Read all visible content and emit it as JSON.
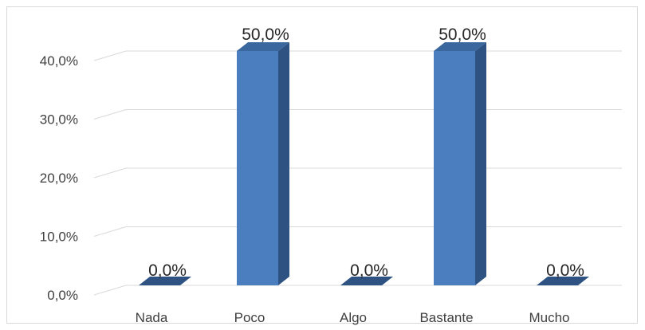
{
  "chart_data": {
    "type": "bar",
    "style": "3d-column",
    "categories": [
      "Nada",
      "Poco",
      "Algo",
      "Bastante",
      "Mucho"
    ],
    "values": [
      0,
      50,
      0,
      50,
      0
    ],
    "data_labels": [
      "0,0%",
      "50,0%",
      "0,0%",
      "50,0%",
      "0,0%"
    ],
    "y_ticks": [
      "0,0%",
      "10,0%",
      "20,0%",
      "30,0%",
      "40,0%"
    ],
    "ylim": [
      0,
      40
    ],
    "title": "",
    "xlabel": "",
    "ylabel": "",
    "grid": true,
    "legend": "none",
    "colors": {
      "bar_front": "#4a7ebf",
      "bar_side": "#2e5282",
      "bar_top": "#3b679f",
      "grid": "#d9d9d9",
      "text": "#404040"
    }
  }
}
